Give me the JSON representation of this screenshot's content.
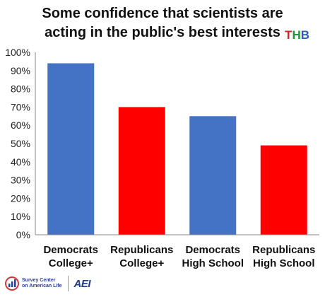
{
  "title_lines": [
    "Some confidence that scientists are",
    "acting in the public's best interests"
  ],
  "badge": {
    "letters": [
      "T",
      "H",
      "B"
    ],
    "colors": [
      "#d61f26",
      "#1a9a3c",
      "#2b59c3"
    ]
  },
  "chart_data": {
    "type": "bar",
    "title": "Some confidence that scientists are acting in the public's best interests",
    "categories": [
      [
        "Democrats",
        "College+"
      ],
      [
        "Republicans",
        "College+"
      ],
      [
        "Democrats",
        "High School"
      ],
      [
        "Republicans",
        "High School"
      ]
    ],
    "values": [
      94,
      70,
      65,
      49
    ],
    "bar_colors": [
      "#4472c4",
      "#ff0000",
      "#4472c4",
      "#ff0000"
    ],
    "ylim": [
      0,
      100
    ],
    "yticks": [
      "0%",
      "10%",
      "20%",
      "30%",
      "40%",
      "50%",
      "60%",
      "70%",
      "80%",
      "90%",
      "100%"
    ],
    "ytick_values": [
      0,
      10,
      20,
      30,
      40,
      50,
      60,
      70,
      80,
      90,
      100
    ],
    "grid": false,
    "legend": "none",
    "xlabel": "",
    "ylabel": ""
  },
  "footer": {
    "survey_center_lines": [
      "Survey Center",
      "on American Life"
    ],
    "aei_label": "AEI"
  }
}
